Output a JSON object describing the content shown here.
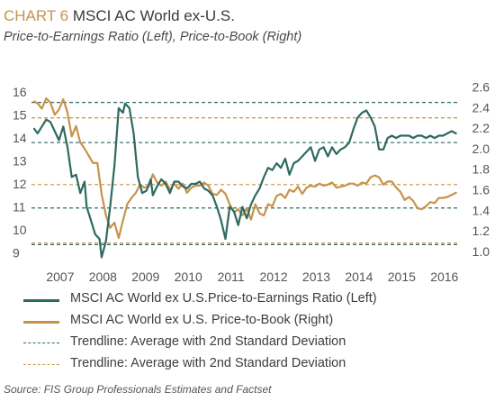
{
  "title_prefix": "CHART 6",
  "title": "MSCI AC World ex-U.S.",
  "subtitle": "Price-to-Earnings Ratio (Left), Price-to-Book (Right)",
  "source": "Source: FIS Group Professionals Estimates and Factset",
  "chart_data": {
    "type": "line",
    "x_ticks": [
      "2007",
      "2008",
      "2009",
      "2010",
      "2011",
      "2012",
      "2013",
      "2014",
      "2015",
      "2016"
    ],
    "x_range": [
      2006.42,
      2016.33
    ],
    "y_left_ticks": [
      9,
      10,
      11,
      12,
      13,
      14,
      15,
      16
    ],
    "y_left_range": [
      8.7,
      16.4
    ],
    "y_right_ticks": [
      1.0,
      1.2,
      1.4,
      1.6,
      1.8,
      2.0,
      2.2,
      2.4,
      2.6
    ],
    "y_right_range": [
      0.92,
      2.64
    ],
    "colors": {
      "pe": "#2d6a60",
      "pb": "#c7934a"
    },
    "series": [
      {
        "name": "MSCI AC World ex U.S.Price-to-Earnings Ratio (Left)",
        "axis": "left",
        "x": [
          2006.42,
          2006.5,
          2006.6,
          2006.7,
          2006.8,
          2006.9,
          2007.0,
          2007.1,
          2007.2,
          2007.3,
          2007.4,
          2007.5,
          2007.6,
          2007.65,
          2007.75,
          2007.85,
          2007.95,
          2008.0,
          2008.1,
          2008.2,
          2008.3,
          2008.4,
          2008.5,
          2008.55,
          2008.65,
          2008.75,
          2008.85,
          2008.95,
          2009.05,
          2009.15,
          2009.2,
          2009.3,
          2009.4,
          2009.5,
          2009.6,
          2009.7,
          2009.8,
          2009.9,
          2010.0,
          2010.1,
          2010.2,
          2010.3,
          2010.4,
          2010.5,
          2010.6,
          2010.7,
          2010.8,
          2010.9,
          2011.0,
          2011.1,
          2011.2,
          2011.3,
          2011.4,
          2011.5,
          2011.6,
          2011.7,
          2011.8,
          2011.9,
          2012.0,
          2012.1,
          2012.2,
          2012.3,
          2012.4,
          2012.5,
          2012.6,
          2012.7,
          2012.8,
          2012.9,
          2013.0,
          2013.1,
          2013.2,
          2013.3,
          2013.4,
          2013.5,
          2013.6,
          2013.7,
          2013.8,
          2013.9,
          2014.0,
          2014.1,
          2014.2,
          2014.3,
          2014.4,
          2014.5,
          2014.6,
          2014.7,
          2014.8,
          2014.9,
          2015.0,
          2015.1,
          2015.2,
          2015.3,
          2015.4,
          2015.5,
          2015.6,
          2015.7,
          2015.8,
          2015.9,
          2016.0,
          2016.1,
          2016.2,
          2016.3
        ],
        "values": [
          14.4,
          14.2,
          14.5,
          14.8,
          14.7,
          14.3,
          13.9,
          14.5,
          13.6,
          12.3,
          12.4,
          11.6,
          12.1,
          11.0,
          10.4,
          9.8,
          9.6,
          8.8,
          9.5,
          11.0,
          12.8,
          15.3,
          15.1,
          15.5,
          15.3,
          14.2,
          12.3,
          11.6,
          11.7,
          12.2,
          11.5,
          11.9,
          12.2,
          12.0,
          11.6,
          12.1,
          12.1,
          11.9,
          11.8,
          12.0,
          12.0,
          12.1,
          11.8,
          11.7,
          11.5,
          11.0,
          10.4,
          9.6,
          11.0,
          10.8,
          10.2,
          11.0,
          10.5,
          11.1,
          11.5,
          11.8,
          12.3,
          12.7,
          12.6,
          12.9,
          12.7,
          13.1,
          12.4,
          12.9,
          13.0,
          13.2,
          13.4,
          13.6,
          13.0,
          13.5,
          13.6,
          13.2,
          13.6,
          13.3,
          13.5,
          13.6,
          13.8,
          14.4,
          14.9,
          15.1,
          15.2,
          14.9,
          14.5,
          13.5,
          13.5,
          14.0,
          14.1,
          14.0,
          14.1,
          14.1,
          14.1,
          14.0,
          14.1,
          14.1,
          14.0,
          14.1,
          14.0,
          14.1,
          14.1,
          14.2,
          14.3,
          14.2
        ],
        "trendlines": [
          15.55,
          13.8,
          10.95,
          9.35
        ]
      },
      {
        "name": "MSCI AC World ex U.S. Price-to-Book (Right)",
        "axis": "right",
        "x": [
          2006.42,
          2006.5,
          2006.6,
          2006.7,
          2006.8,
          2006.9,
          2007.0,
          2007.1,
          2007.15,
          2007.2,
          2007.3,
          2007.4,
          2007.5,
          2007.6,
          2007.7,
          2007.8,
          2007.9,
          2008.0,
          2008.1,
          2008.2,
          2008.3,
          2008.4,
          2008.5,
          2008.6,
          2008.7,
          2008.8,
          2008.9,
          2009.0,
          2009.1,
          2009.2,
          2009.3,
          2009.4,
          2009.5,
          2009.6,
          2009.7,
          2009.8,
          2009.9,
          2010.0,
          2010.1,
          2010.2,
          2010.3,
          2010.4,
          2010.5,
          2010.6,
          2010.7,
          2010.8,
          2010.9,
          2011.0,
          2011.1,
          2011.2,
          2011.3,
          2011.4,
          2011.5,
          2011.6,
          2011.7,
          2011.8,
          2011.9,
          2012.0,
          2012.1,
          2012.2,
          2012.3,
          2012.4,
          2012.5,
          2012.6,
          2012.7,
          2012.8,
          2012.9,
          2013.0,
          2013.1,
          2013.2,
          2013.3,
          2013.4,
          2013.5,
          2013.6,
          2013.7,
          2013.8,
          2013.9,
          2014.0,
          2014.1,
          2014.2,
          2014.3,
          2014.4,
          2014.5,
          2014.6,
          2014.7,
          2014.8,
          2014.9,
          2015.0,
          2015.1,
          2015.2,
          2015.3,
          2015.4,
          2015.5,
          2015.6,
          2015.7,
          2015.8,
          2015.9,
          2016.0,
          2016.1,
          2016.2,
          2016.3
        ],
        "values": [
          2.46,
          2.44,
          2.39,
          2.49,
          2.45,
          2.33,
          2.38,
          2.48,
          2.42,
          2.35,
          2.12,
          2.22,
          2.06,
          2.0,
          1.93,
          1.86,
          1.86,
          1.56,
          1.35,
          1.23,
          1.28,
          1.13,
          1.3,
          1.46,
          1.52,
          1.57,
          1.65,
          1.62,
          1.63,
          1.75,
          1.67,
          1.64,
          1.68,
          1.6,
          1.66,
          1.61,
          1.66,
          1.57,
          1.62,
          1.64,
          1.64,
          1.67,
          1.64,
          1.56,
          1.55,
          1.6,
          1.56,
          1.46,
          1.38,
          1.41,
          1.35,
          1.42,
          1.31,
          1.46,
          1.37,
          1.35,
          1.46,
          1.44,
          1.54,
          1.56,
          1.52,
          1.6,
          1.58,
          1.63,
          1.56,
          1.62,
          1.64,
          1.63,
          1.66,
          1.64,
          1.65,
          1.67,
          1.62,
          1.63,
          1.64,
          1.66,
          1.66,
          1.64,
          1.67,
          1.66,
          1.72,
          1.74,
          1.72,
          1.65,
          1.68,
          1.68,
          1.62,
          1.58,
          1.5,
          1.53,
          1.49,
          1.42,
          1.41,
          1.44,
          1.48,
          1.47,
          1.52,
          1.52,
          1.53,
          1.55,
          1.57
        ],
        "trendlines": [
          2.3,
          1.65,
          1.08
        ]
      }
    ],
    "legend": [
      {
        "label": "MSCI AC World ex U.S.Price-to-Earnings Ratio (Left)",
        "style": "solid",
        "color": "#2d6a60"
      },
      {
        "label": "MSCI AC World ex U.S. Price-to-Book (Right)",
        "style": "solid",
        "color": "#c7934a"
      },
      {
        "label": "Trendline: Average with 2nd Standard Deviation",
        "style": "dashed",
        "color": "#2d6a60"
      },
      {
        "label": "Trendline: Average with 2nd Standard Deviation",
        "style": "dashed",
        "color": "#c7934a"
      }
    ]
  }
}
